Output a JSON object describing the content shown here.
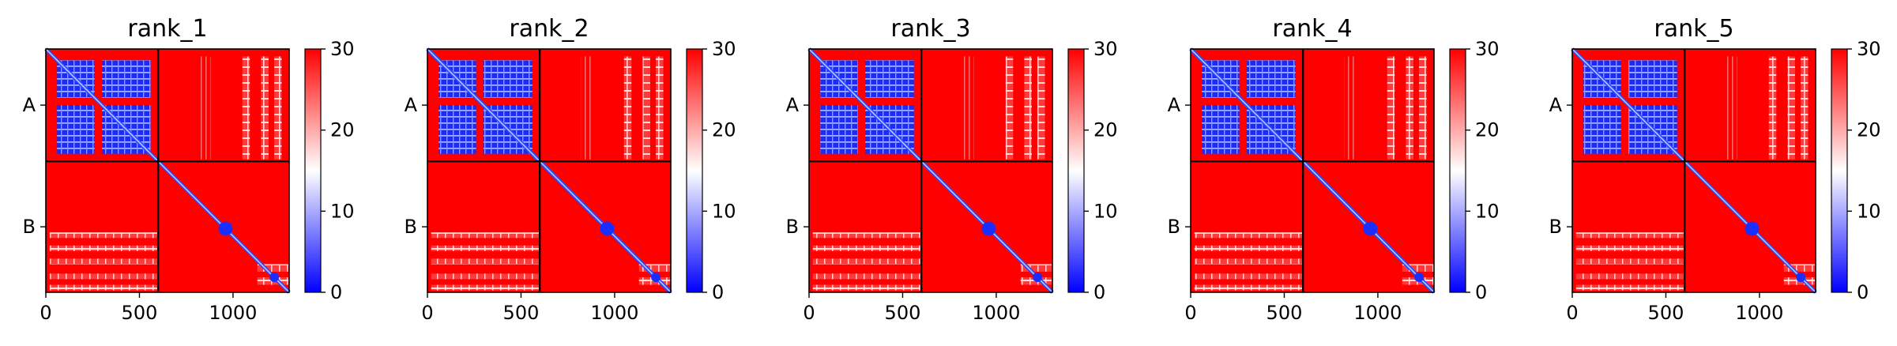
{
  "chart_data": [
    {
      "type": "heatmap",
      "title": "rank_1",
      "chain_labels": [
        "A",
        "B"
      ],
      "xticks": [
        "0",
        "500",
        "1000"
      ],
      "xlim": [
        0,
        1300
      ],
      "chain_boundary": 600,
      "colorbar": {
        "ticks": [
          "0",
          "10",
          "20",
          "30"
        ],
        "range": [
          0,
          30
        ],
        "colormap": "bwr"
      }
    },
    {
      "type": "heatmap",
      "title": "rank_2",
      "chain_labels": [
        "A",
        "B"
      ],
      "xticks": [
        "0",
        "500",
        "1000"
      ],
      "xlim": [
        0,
        1300
      ],
      "chain_boundary": 600,
      "colorbar": {
        "ticks": [
          "0",
          "10",
          "20",
          "30"
        ],
        "range": [
          0,
          30
        ],
        "colormap": "bwr"
      }
    },
    {
      "type": "heatmap",
      "title": "rank_3",
      "chain_labels": [
        "A",
        "B"
      ],
      "xticks": [
        "0",
        "500",
        "1000"
      ],
      "xlim": [
        0,
        1300
      ],
      "chain_boundary": 600,
      "colorbar": {
        "ticks": [
          "0",
          "10",
          "20",
          "30"
        ],
        "range": [
          0,
          30
        ],
        "colormap": "bwr"
      }
    },
    {
      "type": "heatmap",
      "title": "rank_4",
      "chain_labels": [
        "A",
        "B"
      ],
      "xticks": [
        "0",
        "500",
        "1000"
      ],
      "xlim": [
        0,
        1300
      ],
      "chain_boundary": 600,
      "colorbar": {
        "ticks": [
          "0",
          "10",
          "20",
          "30"
        ],
        "range": [
          0,
          30
        ],
        "colormap": "bwr"
      }
    },
    {
      "type": "heatmap",
      "title": "rank_5",
      "chain_labels": [
        "A",
        "B"
      ],
      "xticks": [
        "0",
        "500",
        "1000"
      ],
      "xlim": [
        0,
        1300
      ],
      "chain_boundary": 600,
      "colorbar": {
        "ticks": [
          "0",
          "10",
          "20",
          "30"
        ],
        "range": [
          0,
          30
        ],
        "colormap": "bwr"
      }
    }
  ],
  "colors": {
    "high": "#ff0000",
    "mid": "#ffffff",
    "low": "#0000ff",
    "boundary_line": "#000000"
  }
}
